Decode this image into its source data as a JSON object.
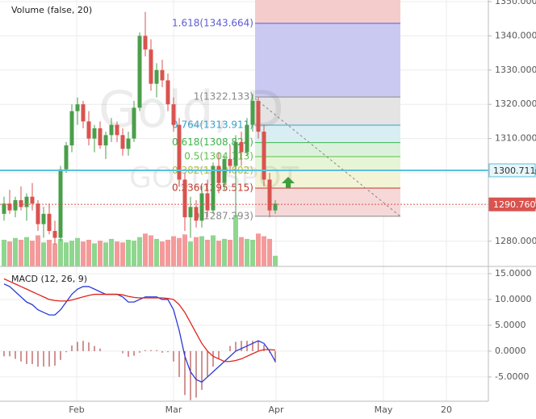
{
  "chart_data": {
    "type": "candlestick",
    "title": "Gold, D",
    "subtitle": "GOLD SPOT",
    "up_color": "#4a9f4a",
    "down_color": "#d9534f",
    "open": [
      1288,
      1291,
      1289,
      1292,
      1290,
      1293,
      1291,
      1285,
      1288,
      1283,
      1281,
      1301,
      1308,
      1318,
      1320,
      1315,
      1310,
      1313,
      1308,
      1311,
      1314,
      1311,
      1307,
      1310,
      1319,
      1340,
      1336,
      1326,
      1330,
      1327,
      1320,
      1314,
      1298,
      1287,
      1290,
      1286,
      1294,
      1289,
      1302,
      1297,
      1304,
      1302,
      1309,
      1306,
      1314,
      1321,
      1312,
      1298,
      1289
    ],
    "high": [
      1293,
      1295,
      1293,
      1296,
      1294,
      1297,
      1292,
      1290,
      1291,
      1286,
      1302,
      1309,
      1320,
      1322,
      1321,
      1318,
      1314,
      1315,
      1312,
      1316,
      1315,
      1313,
      1312,
      1321,
      1341,
      1347,
      1339,
      1332,
      1333,
      1329,
      1322,
      1316,
      1300,
      1293,
      1292,
      1296,
      1298,
      1303,
      1306,
      1305,
      1308,
      1311,
      1312,
      1316,
      1323,
      1322,
      1314,
      1300,
      1292
    ],
    "low": [
      1286,
      1288,
      1287,
      1289,
      1286,
      1289,
      1283,
      1281,
      1282,
      1279,
      1280,
      1300,
      1306,
      1314,
      1313,
      1308,
      1306,
      1307,
      1304,
      1309,
      1309,
      1305,
      1305,
      1309,
      1318,
      1334,
      1324,
      1322,
      1325,
      1318,
      1312,
      1296,
      1283,
      1281,
      1284,
      1284,
      1287,
      1288,
      1294,
      1295,
      1300,
      1287,
      1302,
      1305,
      1312,
      1310,
      1296,
      1287,
      1288
    ],
    "close": [
      1291,
      1289,
      1292,
      1290,
      1293,
      1291,
      1285,
      1288,
      1283,
      1281,
      1301,
      1308,
      1318,
      1320,
      1315,
      1310,
      1313,
      1308,
      1311,
      1314,
      1311,
      1307,
      1310,
      1319,
      1340,
      1336,
      1326,
      1330,
      1327,
      1320,
      1314,
      1298,
      1287,
      1290,
      1286,
      1294,
      1289,
      1302,
      1297,
      1304,
      1302,
      1309,
      1306,
      1314,
      1321,
      1312,
      1298,
      1289,
      1291
    ],
    "xlim": [
      -0.714,
      85.714
    ],
    "xticks": [
      {
        "value": 12.86,
        "label": "Feb"
      },
      {
        "value": 30,
        "label": "Mar"
      },
      {
        "value": 48.14,
        "label": "Apr"
      },
      {
        "value": 67.14,
        "label": "May"
      },
      {
        "value": 78.29,
        "label": "20"
      }
    ],
    "ylim": [
      1272.64,
      1350.47
    ],
    "yticks": [
      {
        "value": 1280,
        "label": "1280.000"
      },
      {
        "value": 1290,
        "label": "1290.000"
      },
      {
        "value": 1300,
        "label": "1300.000"
      },
      {
        "value": 1310,
        "label": "1310.000"
      },
      {
        "value": 1320,
        "label": "1320.000"
      },
      {
        "value": 1330,
        "label": "1330.000"
      },
      {
        "value": 1340,
        "label": "1340.000"
      },
      {
        "value": 1350,
        "label": "1350.000"
      }
    ],
    "grid": true,
    "volume": {
      "label": "Volume (false, 20)",
      "up_color": "#8fd68f",
      "down_color": "#f59a9a",
      "ylim": [
        0,
        300
      ],
      "values": [
        30,
        28,
        32,
        30,
        33,
        29,
        35,
        27,
        30,
        26,
        31,
        27,
        29,
        32,
        28,
        30,
        26,
        29,
        27,
        31,
        28,
        27,
        30,
        29,
        33,
        37,
        35,
        31,
        28,
        30,
        34,
        32,
        36,
        28,
        33,
        34,
        30,
        35,
        29,
        31,
        30,
        58,
        33,
        31,
        30,
        37,
        34,
        31,
        12
      ]
    },
    "fibonacci": {
      "top_fill": "#f5cccc",
      "levels": [
        {
          "label": "1.618(1343.664)",
          "value": 1343.664,
          "color": "#5b5bd6",
          "fill": "#c9c9f2"
        },
        {
          "label": "1(1322.133)",
          "value": 1322.133,
          "color": "#888888",
          "fill": "#e4e4e4"
        },
        {
          "label": "0.764(1313.911)",
          "value": 1313.911,
          "color": "#3aa0c8",
          "fill": "#d9eef2"
        },
        {
          "label": "0.618(1308.824)",
          "value": 1308.824,
          "color": "#3cb44b",
          "fill": "#dcf1dc"
        },
        {
          "label": "0.5(1304.713)",
          "value": 1304.713,
          "color": "#5cbf4a",
          "fill": "#e6f5d6"
        },
        {
          "label": "0.382(1300.602)",
          "value": 1300.602,
          "color": "#a9c23c",
          "fill": "#f3f3d6"
        },
        {
          "label": "0.236(1295.515)",
          "value": 1295.515,
          "color": "#c0392b",
          "fill": "#f6d8d8"
        },
        {
          "label": "0(1287.293)",
          "value": 1287.293,
          "color": "#888888"
        }
      ]
    },
    "price_lines": [
      {
        "value": 1300.711,
        "color": "#5bc0de",
        "label_bg": "#e8f6f9",
        "label_color": "#333333"
      },
      {
        "value": {
          "value": 1290.76,
          "label": "1290.760"
        },
        "color": "#d9534f",
        "label_bg": "#d9534f",
        "label_color": "#ffffff"
      }
    ],
    "macd": {
      "label": "MACD (12, 26, 9)",
      "ylim": [
        -9.7,
        16.4
      ],
      "yticks": [
        {
          "value": 15,
          "label": "15.0000"
        },
        {
          "value": 10,
          "label": "10.0000"
        },
        {
          "value": 5,
          "label": "5.0000"
        },
        {
          "value": 0,
          "label": "0.0000"
        },
        {
          "value": -5,
          "label": "-5.0000"
        }
      ],
      "series": [
        {
          "color": "#2b3bd6",
          "values": [
            13,
            12.5,
            11.5,
            10.5,
            9.5,
            9,
            8,
            7.5,
            7,
            7,
            8,
            9.5,
            11,
            12,
            12.5,
            12.5,
            12,
            11.5,
            11,
            11,
            11,
            10.5,
            9.5,
            9.5,
            10,
            10.5,
            10.5,
            10.5,
            10,
            10,
            8,
            4,
            -1,
            -4,
            -5.5,
            -6,
            -5,
            -4,
            -3,
            -2,
            -1,
            0,
            0.5,
            1,
            1.5,
            2,
            1.5,
            0,
            -2
          ]
        },
        {
          "color": "#e0241b",
          "values": [
            14,
            13.5,
            13,
            12.5,
            12,
            11.5,
            11,
            10.5,
            10,
            9.8,
            9.7,
            9.7,
            9.9,
            10.2,
            10.5,
            10.8,
            11,
            11,
            11,
            11,
            11,
            10.9,
            10.6,
            10.4,
            10.3,
            10.3,
            10.3,
            10.3,
            10.3,
            10.2,
            10,
            9,
            7.5,
            5.5,
            3.5,
            1.5,
            0,
            -1,
            -1.5,
            -2,
            -2,
            -1.8,
            -1.5,
            -1,
            -0.5,
            0,
            0.3,
            0.3,
            0.2
          ]
        }
      ],
      "histogram": {
        "color": "#a52a2a",
        "values": [
          -1,
          -1,
          -1.5,
          -2,
          -2.5,
          -2.5,
          -3,
          -3,
          -3,
          -2.8,
          -1.7,
          -0.2,
          1.1,
          1.8,
          2,
          1.7,
          1,
          0.5,
          0,
          0,
          0,
          -0.4,
          -1.1,
          -0.9,
          -0.3,
          0.2,
          0.2,
          0.2,
          -0.3,
          -0.2,
          -2,
          -5,
          -8.5,
          -9.5,
          -9,
          -7.5,
          -5,
          -3,
          -1.5,
          0,
          1,
          1.8,
          2,
          2,
          2,
          2,
          1.2,
          -0.3,
          -2.2
        ]
      }
    }
  }
}
